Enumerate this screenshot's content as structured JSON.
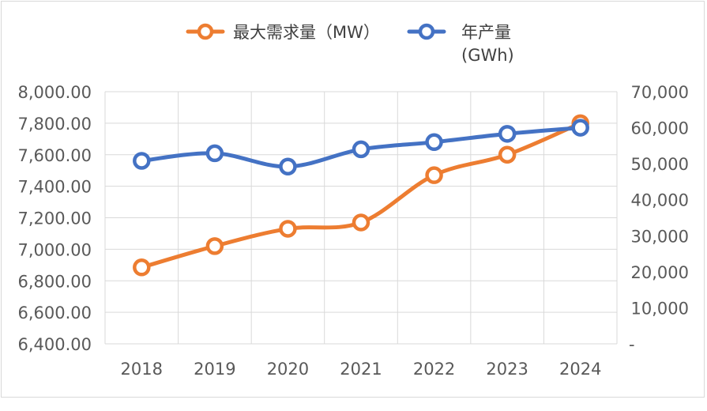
{
  "chart_data": {
    "type": "line",
    "categories": [
      "2018",
      "2019",
      "2020",
      "2021",
      "2022",
      "2023",
      "2024"
    ],
    "series": [
      {
        "name": "最大需求量（MW）",
        "axis": "left",
        "color": "#ED7D31",
        "values": [
          6885,
          7020,
          7130,
          7170,
          7470,
          7600,
          7800
        ]
      },
      {
        "name": "年产量",
        "name_line2": "(GWh)",
        "axis": "right",
        "color": "#4472C4",
        "values": [
          50800,
          52900,
          49200,
          54000,
          56000,
          58300,
          60000
        ]
      }
    ],
    "left_axis": {
      "ylim": [
        6400,
        8000
      ],
      "ticks": [
        6400,
        6600,
        6800,
        7000,
        7200,
        7400,
        7600,
        7800,
        8000
      ],
      "tick_labels": [
        "6,400.00",
        "6,600.00",
        "6,800.00",
        "7,000.00",
        "7,200.00",
        "7,400.00",
        "7,600.00",
        "7,800.00",
        "8,000.00"
      ]
    },
    "right_axis": {
      "ylim": [
        0,
        70000
      ],
      "ticks": [
        0,
        10000,
        20000,
        30000,
        40000,
        50000,
        60000,
        70000
      ],
      "tick_labels": [
        "-",
        "10,000",
        "20,000",
        "30,000",
        "40,000",
        "50,000",
        "60,000",
        "70,000"
      ]
    },
    "grid": true,
    "legend_position": "top"
  }
}
